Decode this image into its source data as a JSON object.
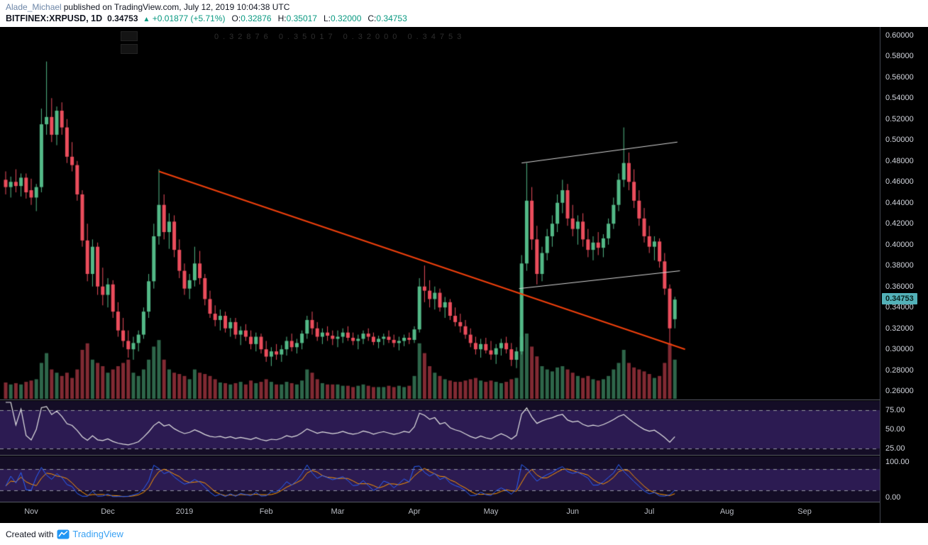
{
  "header": {
    "author": "Alade_Michael",
    "published_text": "published on TradingView.com, July 12, 2019 10:04:38 UTC",
    "symbol": "BITFINEX:XRPUSD, 1D",
    "last": "0.34753",
    "arrow": "▲",
    "change": "+0.01877 (+5.71%)",
    "ohlc": {
      "o_label": "O:",
      "o_value": "0.32876",
      "h_label": "H:",
      "h_value": "0.35017",
      "l_label": "L:",
      "l_value": "0.32000",
      "c_label": "C:",
      "c_value": "0.34753"
    }
  },
  "legend": {
    "dim_text": "0.32876 0.35017 0.32000 0.34753"
  },
  "footer": {
    "created_with": "Created with",
    "brand": "TradingView"
  },
  "chart_data": {
    "type": "candlestick",
    "symbol": "BITFINEX:XRPUSD",
    "interval": "1D",
    "panes": [
      "price+volume",
      "rsi",
      "stochastic"
    ],
    "price_axis": {
      "min": 0.252,
      "max": 0.608,
      "labels": [
        "0.60000",
        "0.58000",
        "0.56000",
        "0.54000",
        "0.52000",
        "0.50000",
        "0.48000",
        "0.46000",
        "0.44000",
        "0.42000",
        "0.40000",
        "0.38000",
        "0.36000",
        "0.34000",
        "0.32000",
        "0.30000",
        "0.28000",
        "0.26000"
      ],
      "last_price": 0.34753,
      "last_price_label": "0.34753"
    },
    "x_axis": {
      "ticks": [
        {
          "label": "Nov",
          "i": 5
        },
        {
          "label": "Dec",
          "i": 20
        },
        {
          "label": "2019",
          "i": 35
        },
        {
          "label": "Feb",
          "i": 51
        },
        {
          "label": "Mar",
          "i": 65
        },
        {
          "label": "Apr",
          "i": 80
        },
        {
          "label": "May",
          "i": 95
        },
        {
          "label": "Jun",
          "i": 111
        },
        {
          "label": "Jul",
          "i": 126
        },
        {
          "label": "Aug",
          "i": 141.2
        },
        {
          "label": "Sep",
          "i": 156.4
        }
      ]
    },
    "candles": [
      [
        0.462,
        0.47,
        0.448,
        0.455,
        25
      ],
      [
        0.455,
        0.465,
        0.445,
        0.46,
        22
      ],
      [
        0.46,
        0.472,
        0.45,
        0.456,
        24
      ],
      [
        0.456,
        0.468,
        0.446,
        0.464,
        22
      ],
      [
        0.464,
        0.468,
        0.444,
        0.45,
        26
      ],
      [
        0.452,
        0.463,
        0.438,
        0.445,
        28
      ],
      [
        0.445,
        0.458,
        0.432,
        0.455,
        30
      ],
      [
        0.455,
        0.53,
        0.45,
        0.515,
        55
      ],
      [
        0.515,
        0.575,
        0.505,
        0.522,
        70
      ],
      [
        0.522,
        0.54,
        0.498,
        0.505,
        45
      ],
      [
        0.505,
        0.532,
        0.495,
        0.528,
        40
      ],
      [
        0.528,
        0.536,
        0.505,
        0.512,
        35
      ],
      [
        0.512,
        0.52,
        0.478,
        0.484,
        40
      ],
      [
        0.484,
        0.498,
        0.47,
        0.476,
        32
      ],
      [
        0.476,
        0.48,
        0.442,
        0.448,
        45
      ],
      [
        0.448,
        0.452,
        0.398,
        0.404,
        75
      ],
      [
        0.404,
        0.42,
        0.365,
        0.372,
        85
      ],
      [
        0.372,
        0.405,
        0.36,
        0.398,
        60
      ],
      [
        0.398,
        0.402,
        0.352,
        0.36,
        55
      ],
      [
        0.36,
        0.378,
        0.342,
        0.352,
        50
      ],
      [
        0.352,
        0.368,
        0.34,
        0.362,
        40
      ],
      [
        0.362,
        0.366,
        0.33,
        0.336,
        45
      ],
      [
        0.336,
        0.345,
        0.312,
        0.318,
        50
      ],
      [
        0.318,
        0.33,
        0.302,
        0.308,
        55
      ],
      [
        0.308,
        0.318,
        0.292,
        0.3,
        60
      ],
      [
        0.3,
        0.312,
        0.29,
        0.306,
        40
      ],
      [
        0.306,
        0.318,
        0.298,
        0.314,
        35
      ],
      [
        0.314,
        0.34,
        0.31,
        0.336,
        45
      ],
      [
        0.336,
        0.372,
        0.33,
        0.365,
        60
      ],
      [
        0.365,
        0.42,
        0.358,
        0.408,
        80
      ],
      [
        0.408,
        0.472,
        0.4,
        0.438,
        90
      ],
      [
        0.438,
        0.448,
        0.405,
        0.412,
        60
      ],
      [
        0.412,
        0.43,
        0.396,
        0.422,
        45
      ],
      [
        0.422,
        0.428,
        0.388,
        0.395,
        40
      ],
      [
        0.395,
        0.405,
        0.368,
        0.375,
        38
      ],
      [
        0.375,
        0.382,
        0.352,
        0.358,
        35
      ],
      [
        0.358,
        0.372,
        0.348,
        0.366,
        30
      ],
      [
        0.366,
        0.398,
        0.36,
        0.382,
        45
      ],
      [
        0.382,
        0.394,
        0.362,
        0.368,
        40
      ],
      [
        0.368,
        0.372,
        0.342,
        0.348,
        38
      ],
      [
        0.348,
        0.356,
        0.33,
        0.334,
        35
      ],
      [
        0.334,
        0.342,
        0.322,
        0.328,
        30
      ],
      [
        0.328,
        0.338,
        0.318,
        0.332,
        25
      ],
      [
        0.332,
        0.336,
        0.316,
        0.32,
        24
      ],
      [
        0.32,
        0.33,
        0.312,
        0.326,
        22
      ],
      [
        0.326,
        0.33,
        0.31,
        0.314,
        24
      ],
      [
        0.314,
        0.322,
        0.304,
        0.318,
        26
      ],
      [
        0.318,
        0.324,
        0.308,
        0.312,
        22
      ],
      [
        0.312,
        0.318,
        0.3,
        0.305,
        28
      ],
      [
        0.305,
        0.316,
        0.298,
        0.312,
        24
      ],
      [
        0.312,
        0.315,
        0.296,
        0.3,
        26
      ],
      [
        0.3,
        0.308,
        0.288,
        0.293,
        30
      ],
      [
        0.293,
        0.302,
        0.284,
        0.298,
        26
      ],
      [
        0.298,
        0.305,
        0.29,
        0.295,
        22
      ],
      [
        0.295,
        0.304,
        0.288,
        0.3,
        22
      ],
      [
        0.3,
        0.312,
        0.294,
        0.308,
        26
      ],
      [
        0.308,
        0.315,
        0.298,
        0.302,
        24
      ],
      [
        0.302,
        0.31,
        0.296,
        0.306,
        22
      ],
      [
        0.306,
        0.318,
        0.3,
        0.315,
        28
      ],
      [
        0.315,
        0.332,
        0.31,
        0.328,
        45
      ],
      [
        0.328,
        0.336,
        0.314,
        0.32,
        40
      ],
      [
        0.32,
        0.326,
        0.308,
        0.312,
        30
      ],
      [
        0.312,
        0.32,
        0.305,
        0.316,
        24
      ],
      [
        0.316,
        0.322,
        0.308,
        0.313,
        22
      ],
      [
        0.313,
        0.318,
        0.304,
        0.31,
        22
      ],
      [
        0.31,
        0.318,
        0.302,
        0.312,
        22
      ],
      [
        0.312,
        0.32,
        0.306,
        0.316,
        20
      ],
      [
        0.316,
        0.322,
        0.308,
        0.311,
        20
      ],
      [
        0.311,
        0.316,
        0.304,
        0.308,
        18
      ],
      [
        0.308,
        0.314,
        0.3,
        0.31,
        20
      ],
      [
        0.31,
        0.318,
        0.305,
        0.315,
        22
      ],
      [
        0.315,
        0.32,
        0.308,
        0.312,
        20
      ],
      [
        0.312,
        0.316,
        0.304,
        0.307,
        18
      ],
      [
        0.307,
        0.313,
        0.301,
        0.31,
        18
      ],
      [
        0.31,
        0.315,
        0.304,
        0.312,
        18
      ],
      [
        0.312,
        0.318,
        0.306,
        0.309,
        20
      ],
      [
        0.309,
        0.314,
        0.302,
        0.306,
        18
      ],
      [
        0.306,
        0.312,
        0.299,
        0.308,
        20
      ],
      [
        0.308,
        0.314,
        0.303,
        0.311,
        18
      ],
      [
        0.311,
        0.316,
        0.305,
        0.309,
        20
      ],
      [
        0.309,
        0.322,
        0.306,
        0.319,
        35
      ],
      [
        0.319,
        0.368,
        0.316,
        0.36,
        85
      ],
      [
        0.36,
        0.38,
        0.345,
        0.356,
        70
      ],
      [
        0.356,
        0.366,
        0.34,
        0.348,
        50
      ],
      [
        0.348,
        0.36,
        0.338,
        0.354,
        40
      ],
      [
        0.354,
        0.358,
        0.336,
        0.34,
        35
      ],
      [
        0.34,
        0.35,
        0.33,
        0.345,
        30
      ],
      [
        0.345,
        0.348,
        0.328,
        0.332,
        28
      ],
      [
        0.332,
        0.34,
        0.322,
        0.326,
        26
      ],
      [
        0.326,
        0.334,
        0.316,
        0.322,
        26
      ],
      [
        0.322,
        0.328,
        0.31,
        0.314,
        28
      ],
      [
        0.314,
        0.32,
        0.302,
        0.306,
        30
      ],
      [
        0.306,
        0.312,
        0.295,
        0.3,
        32
      ],
      [
        0.3,
        0.31,
        0.292,
        0.305,
        28
      ],
      [
        0.305,
        0.311,
        0.296,
        0.299,
        26
      ],
      [
        0.299,
        0.308,
        0.29,
        0.295,
        28
      ],
      [
        0.295,
        0.305,
        0.286,
        0.301,
        26
      ],
      [
        0.301,
        0.31,
        0.294,
        0.306,
        24
      ],
      [
        0.306,
        0.312,
        0.296,
        0.3,
        26
      ],
      [
        0.3,
        0.306,
        0.284,
        0.29,
        30
      ],
      [
        0.29,
        0.302,
        0.282,
        0.298,
        32
      ],
      [
        0.298,
        0.39,
        0.295,
        0.382,
        95
      ],
      [
        0.382,
        0.478,
        0.375,
        0.442,
        100
      ],
      [
        0.442,
        0.455,
        0.395,
        0.405,
        80
      ],
      [
        0.405,
        0.418,
        0.362,
        0.372,
        65
      ],
      [
        0.372,
        0.398,
        0.365,
        0.392,
        50
      ],
      [
        0.392,
        0.415,
        0.385,
        0.408,
        45
      ],
      [
        0.408,
        0.428,
        0.398,
        0.42,
        42
      ],
      [
        0.42,
        0.448,
        0.412,
        0.44,
        48
      ],
      [
        0.44,
        0.462,
        0.43,
        0.452,
        50
      ],
      [
        0.452,
        0.458,
        0.418,
        0.425,
        45
      ],
      [
        0.425,
        0.438,
        0.408,
        0.415,
        40
      ],
      [
        0.415,
        0.428,
        0.4,
        0.422,
        35
      ],
      [
        0.422,
        0.43,
        0.398,
        0.405,
        32
      ],
      [
        0.405,
        0.415,
        0.388,
        0.395,
        35
      ],
      [
        0.395,
        0.408,
        0.385,
        0.402,
        30
      ],
      [
        0.402,
        0.412,
        0.39,
        0.397,
        28
      ],
      [
        0.397,
        0.41,
        0.388,
        0.406,
        30
      ],
      [
        0.406,
        0.425,
        0.4,
        0.42,
        35
      ],
      [
        0.42,
        0.445,
        0.415,
        0.438,
        45
      ],
      [
        0.438,
        0.468,
        0.432,
        0.462,
        55
      ],
      [
        0.462,
        0.512,
        0.455,
        0.478,
        75
      ],
      [
        0.478,
        0.488,
        0.452,
        0.46,
        55
      ],
      [
        0.46,
        0.472,
        0.435,
        0.442,
        48
      ],
      [
        0.442,
        0.452,
        0.418,
        0.425,
        45
      ],
      [
        0.425,
        0.435,
        0.402,
        0.408,
        42
      ],
      [
        0.408,
        0.418,
        0.392,
        0.398,
        38
      ],
      [
        0.398,
        0.408,
        0.385,
        0.403,
        32
      ],
      [
        0.403,
        0.406,
        0.378,
        0.384,
        35
      ],
      [
        0.384,
        0.392,
        0.352,
        0.358,
        55
      ],
      [
        0.358,
        0.362,
        0.305,
        0.32,
        85
      ],
      [
        0.32876,
        0.35017,
        0.32,
        0.34753,
        60
      ]
    ],
    "trendlines": [
      {
        "name": "descending-resistance",
        "color": "#f0400c",
        "width": 2,
        "i1": 30,
        "p1": 0.47,
        "i2": 133,
        "p2": 0.3
      },
      {
        "name": "channel-upper",
        "color": "#d8d8d8",
        "width": 1,
        "i1": 101,
        "p1": 0.478,
        "i2": 131.5,
        "p2": 0.498
      },
      {
        "name": "channel-lower",
        "color": "#d8d8d8",
        "width": 1,
        "i1": 100.5,
        "p1": 0.358,
        "i2": 132,
        "p2": 0.375
      }
    ],
    "rsi": {
      "period": 14,
      "levels": [
        75,
        50,
        25
      ],
      "level_labels": [
        "75.00",
        "50.00",
        "25.00"
      ],
      "dashed_levels": [
        75,
        25
      ],
      "line_color": "#e2e2e2"
    },
    "stoch": {
      "k_period": 14,
      "d_period": 3,
      "levels": [
        100,
        0
      ],
      "level_labels": [
        "100.00",
        "0.00"
      ],
      "dashed_levels": [
        80,
        20
      ],
      "k_color": "#2962ff",
      "d_color": "#ff9800"
    },
    "colors": {
      "up": "#53b987",
      "down": "#eb4d5c",
      "pane_bg": "#140d26",
      "band_fill": "#2c1b52",
      "level_dash": "#9598a1",
      "last_tag_bg": "#53b1b8"
    }
  }
}
